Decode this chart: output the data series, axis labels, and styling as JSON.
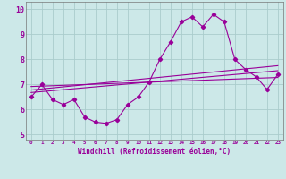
{
  "xlabel": "Windchill (Refroidissement éolien,°C)",
  "ylabel": "",
  "bg_color": "#cce8e8",
  "line_color": "#990099",
  "grid_color": "#aacccc",
  "x": [
    0,
    1,
    2,
    3,
    4,
    5,
    6,
    7,
    8,
    9,
    10,
    11,
    12,
    13,
    14,
    15,
    16,
    17,
    18,
    19,
    20,
    21,
    22,
    23
  ],
  "y_main": [
    6.5,
    7.0,
    6.4,
    6.2,
    6.4,
    5.7,
    5.5,
    5.45,
    5.6,
    6.2,
    6.5,
    7.1,
    8.0,
    8.7,
    9.5,
    9.7,
    9.3,
    9.8,
    9.5,
    8.0,
    7.6,
    7.3,
    6.8,
    7.4
  ],
  "ylim": [
    4.8,
    10.3
  ],
  "xlim": [
    -0.5,
    23.5
  ],
  "yticks": [
    5,
    6,
    7,
    8,
    9,
    10
  ],
  "xticks": [
    0,
    1,
    2,
    3,
    4,
    5,
    6,
    7,
    8,
    9,
    10,
    11,
    12,
    13,
    14,
    15,
    16,
    17,
    18,
    19,
    20,
    21,
    22,
    23
  ],
  "trend1_x": [
    0,
    23
  ],
  "trend1_y": [
    6.68,
    7.55
  ],
  "trend2_x": [
    0,
    23
  ],
  "trend2_y": [
    6.78,
    7.75
  ],
  "trend3_x": [
    0,
    23
  ],
  "trend3_y": [
    6.92,
    7.28
  ]
}
